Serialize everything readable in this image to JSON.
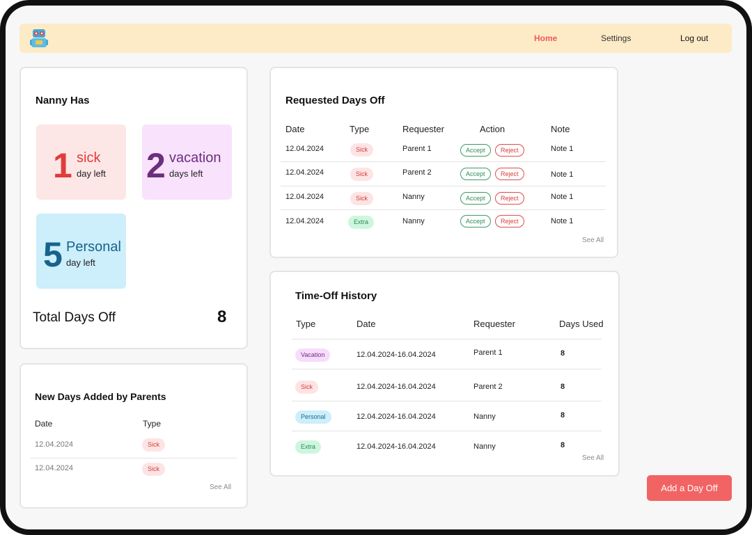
{
  "nav": {
    "logo_icon": "robot-mascot-icon",
    "home": "Home",
    "settings": "Settings",
    "logout": "Log out"
  },
  "nanny_has": {
    "title": "Nanny Has",
    "tiles": [
      {
        "count": "1",
        "name": "sick",
        "sub": "day left",
        "bg": "#fde6e6",
        "num_color": "#e23b3b",
        "name_color": "#e23b3b"
      },
      {
        "count": "2",
        "name": "vacation",
        "sub": "days left",
        "bg": "#f9e2fb",
        "num_color": "#6b2f7d",
        "name_color": "#6b2f7d"
      },
      {
        "count": "5",
        "name": "Personal",
        "sub": "day left",
        "bg": "#cdeefb",
        "num_color": "#16638b",
        "name_color": "#16638b"
      }
    ],
    "total_label": "Total Days Off",
    "total_value": "8"
  },
  "new_days": {
    "title": "New Days Added by Parents",
    "headers": [
      "Date",
      "Type"
    ],
    "rows": [
      {
        "date": "12.04.2024",
        "type": "Sick"
      },
      {
        "date": "12.04.2024",
        "type": "Sick"
      }
    ],
    "see_all": "See All"
  },
  "requested": {
    "title": "Requested Days Off",
    "headers": [
      "Date",
      "Type",
      "Requester",
      "Action",
      "Note"
    ],
    "rows": [
      {
        "date": "12.04.2024",
        "type": "Sick",
        "requester": "Parent 1",
        "accept": "Accept",
        "reject": "Reject",
        "note": "Note 1"
      },
      {
        "date": "12.04.2024",
        "type": "Sick",
        "requester": "Parent 2",
        "accept": "Accept",
        "reject": "Reject",
        "note": "Note 1"
      },
      {
        "date": "12.04.2024",
        "type": "Sick",
        "requester": "Nanny",
        "accept": "Accept",
        "reject": "Reject",
        "note": "Note 1"
      },
      {
        "date": "12.04.2024",
        "type": "Extra",
        "requester": "Nanny",
        "accept": "Accept",
        "reject": "Reject",
        "note": "Note 1"
      }
    ],
    "see_all": "See All"
  },
  "history": {
    "title": "Time-Off History",
    "headers": [
      "Type",
      "Date",
      "Requester",
      "Days Used"
    ],
    "rows": [
      {
        "type": "Vacation",
        "date": "12.04.2024-16.04.2024",
        "requester": "Parent 1",
        "days": "8"
      },
      {
        "type": "Sick",
        "date": "12.04.2024-16.04.2024",
        "requester": "Parent 2",
        "days": "8"
      },
      {
        "type": "Personal",
        "date": "12.04.2024-16.04.2024",
        "requester": "Nanny",
        "days": "8"
      },
      {
        "type": "Extra",
        "date": "12.04.2024-16.04.2024",
        "requester": "Nanny",
        "days": "8"
      }
    ],
    "see_all": "See All"
  },
  "add_button": "Add a Day Off"
}
